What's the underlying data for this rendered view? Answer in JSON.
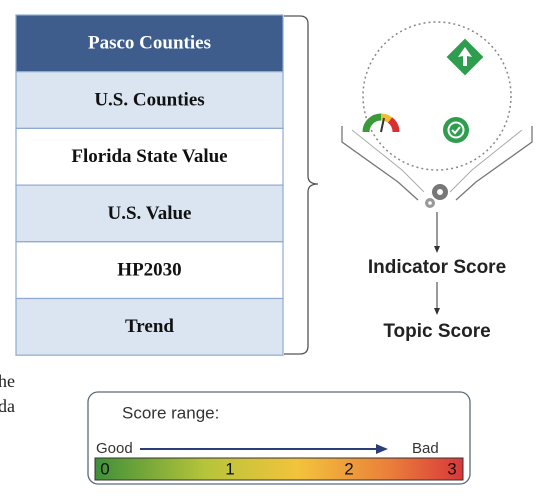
{
  "table": {
    "header": "Pasco Counties",
    "rows": [
      "U.S. Counties",
      "Florida State Value",
      "U.S. Value",
      "HP2030",
      "Trend"
    ]
  },
  "flow": {
    "indicator_label": "Indicator Score",
    "topic_label": "Topic Score"
  },
  "fragment_lines": [
    "he",
    "da"
  ],
  "score_range": {
    "title": "Score range:",
    "low_label": "Good",
    "high_label": "Bad",
    "scale_labels": [
      "0",
      "1",
      "2",
      "3"
    ]
  }
}
